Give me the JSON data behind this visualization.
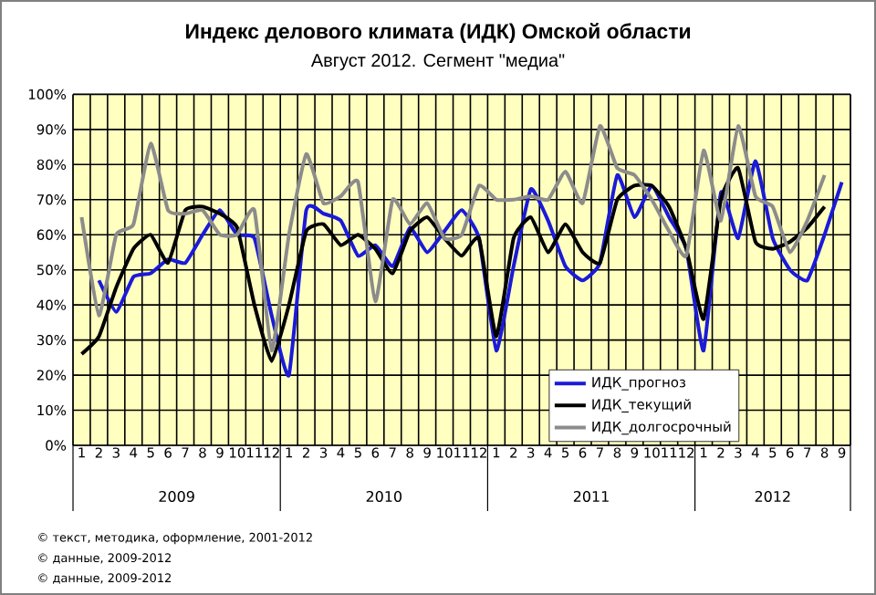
{
  "chart_data": {
    "type": "line",
    "title": "Индекс делового климата (ИДК) Омской области",
    "subtitle": "Август 2012. Сегмент \"медиа\"",
    "categories": [
      "1",
      "2",
      "3",
      "4",
      "5",
      "6",
      "7",
      "8",
      "9",
      "10",
      "11",
      "12",
      "1",
      "2",
      "3",
      "4",
      "5",
      "6",
      "7",
      "8",
      "9",
      "10",
      "11",
      "12",
      "1",
      "2",
      "3",
      "4",
      "5",
      "6",
      "7",
      "8",
      "9",
      "10",
      "11",
      "12",
      "1",
      "2",
      "3",
      "4",
      "5",
      "6",
      "7",
      "8",
      "9"
    ],
    "series": [
      {
        "name": "ИДК_прогноз",
        "color": "#1a1ad8",
        "values": [
          null,
          47,
          38,
          48,
          49,
          53,
          52,
          60,
          67,
          60,
          59,
          37,
          20,
          67,
          66,
          64,
          54,
          57,
          51,
          62,
          55,
          61,
          67,
          59,
          27,
          51,
          73,
          64,
          51,
          47,
          52,
          77,
          65,
          74,
          65,
          56,
          27,
          72,
          59,
          81,
          59,
          50,
          47,
          60,
          75
        ]
      },
      {
        "name": "ИДК_текущий",
        "color": "#000000",
        "values": [
          26,
          31,
          45,
          56,
          60,
          52,
          67,
          68,
          66,
          62,
          40,
          24,
          40,
          61,
          63,
          57,
          60,
          56,
          49,
          61,
          65,
          59,
          54,
          59,
          31,
          59,
          65,
          55,
          63,
          55,
          52,
          70,
          74,
          74,
          68,
          56,
          36,
          70,
          79,
          58,
          56,
          58,
          62,
          68,
          null
        ]
      },
      {
        "name": "ИДК_долгосрочный",
        "color": "#8c8c8c",
        "values": [
          65,
          37,
          60,
          63,
          86,
          67,
          66,
          67,
          60,
          60,
          67,
          27,
          60,
          83,
          69,
          71,
          75,
          41,
          70,
          63,
          69,
          59,
          60,
          74,
          70,
          70,
          71,
          70,
          78,
          69,
          91,
          79,
          77,
          70,
          61,
          54,
          84,
          64,
          91,
          71,
          68,
          55,
          64,
          77,
          null
        ]
      }
    ],
    "ylim": [
      0,
      100
    ],
    "yticks": [
      {
        "value": 0,
        "label": "0%"
      },
      {
        "value": 10,
        "label": "10%"
      },
      {
        "value": 20,
        "label": "20%"
      },
      {
        "value": 30,
        "label": "30%"
      },
      {
        "value": 40,
        "label": "40%"
      },
      {
        "value": 50,
        "label": "50%"
      },
      {
        "value": 60,
        "label": "60%"
      },
      {
        "value": 70,
        "label": "70%"
      },
      {
        "value": 80,
        "label": "80%"
      },
      {
        "value": 90,
        "label": "90%"
      },
      {
        "value": 100,
        "label": "100%"
      }
    ],
    "grid": true,
    "legend": "bottom right",
    "marker": "none",
    "line_style": "solid",
    "annotations": [
      "2009",
      "2010",
      "2011",
      "2012",
      "© текст, методика, оформление, 2001-2012",
      "© данные, 2009-2012",
      "© данные, 2009-2012"
    ]
  }
}
